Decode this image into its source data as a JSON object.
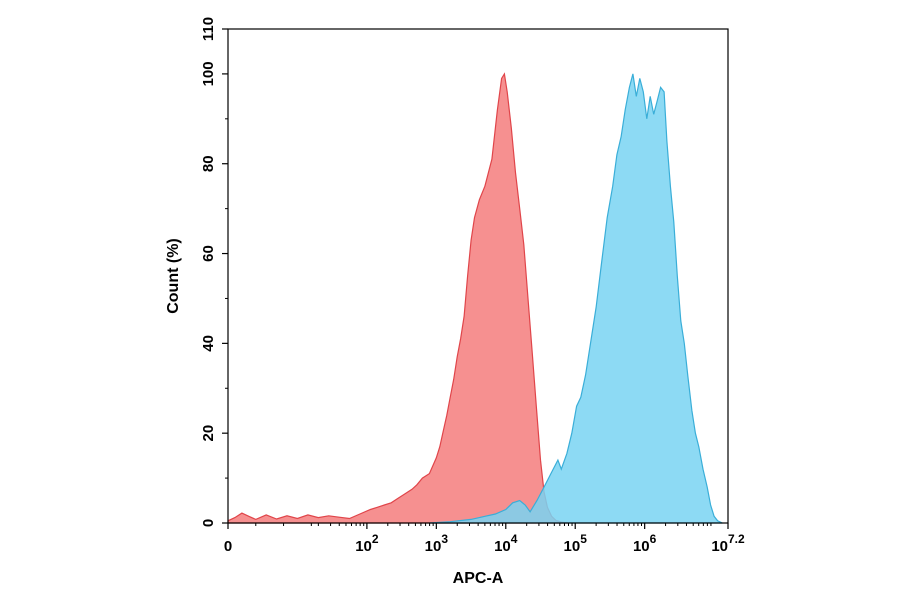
{
  "chart_data": {
    "type": "area",
    "title": "",
    "xlabel": "APC-A",
    "ylabel": "Count (%)",
    "x_scale": "biexponential",
    "xlim": [
      0,
      7.2
    ],
    "ylim": [
      0,
      110
    ],
    "grid": false,
    "legend": "none",
    "y_ticks": [
      0,
      20,
      40,
      60,
      80,
      100,
      110
    ],
    "y_tick_labels": [
      "0",
      "20",
      "40",
      "60",
      "80",
      "100",
      "110"
    ],
    "x_ticks": [
      {
        "pos": 0,
        "base": "0",
        "exp": ""
      },
      {
        "pos": 2,
        "base": "10",
        "exp": "2"
      },
      {
        "pos": 3,
        "base": "10",
        "exp": "3"
      },
      {
        "pos": 4,
        "base": "10",
        "exp": "4"
      },
      {
        "pos": 5,
        "base": "10",
        "exp": "5"
      },
      {
        "pos": 6,
        "base": "10",
        "exp": "6"
      },
      {
        "pos": 7.2,
        "base": "10",
        "exp": "7.2"
      }
    ],
    "series": [
      {
        "color": "#f47c7c",
        "stroke": "#e0454a",
        "points": [
          [
            0.0,
            0.5
          ],
          [
            0.1,
            1.2
          ],
          [
            0.2,
            2.2
          ],
          [
            0.3,
            1.5
          ],
          [
            0.4,
            0.8
          ],
          [
            0.55,
            1.8
          ],
          [
            0.7,
            0.9
          ],
          [
            0.85,
            1.6
          ],
          [
            1.0,
            1.0
          ],
          [
            1.15,
            1.8
          ],
          [
            1.3,
            1.2
          ],
          [
            1.45,
            1.6
          ],
          [
            1.6,
            1.3
          ],
          [
            1.75,
            1.0
          ],
          [
            1.9,
            2.0
          ],
          [
            2.05,
            3.0
          ],
          [
            2.15,
            3.5
          ],
          [
            2.25,
            4.0
          ],
          [
            2.35,
            4.5
          ],
          [
            2.45,
            5.5
          ],
          [
            2.55,
            6.5
          ],
          [
            2.65,
            7.5
          ],
          [
            2.72,
            8.5
          ],
          [
            2.8,
            10.0
          ],
          [
            2.9,
            11.0
          ],
          [
            3.0,
            14.5
          ],
          [
            3.05,
            17.0
          ],
          [
            3.1,
            20.5
          ],
          [
            3.15,
            24.0
          ],
          [
            3.2,
            28.0
          ],
          [
            3.25,
            32.0
          ],
          [
            3.3,
            37.0
          ],
          [
            3.35,
            41.0
          ],
          [
            3.4,
            46.0
          ],
          [
            3.45,
            55.0
          ],
          [
            3.5,
            63.0
          ],
          [
            3.55,
            68.0
          ],
          [
            3.62,
            72.0
          ],
          [
            3.7,
            75.0
          ],
          [
            3.8,
            81.0
          ],
          [
            3.88,
            92.0
          ],
          [
            3.94,
            99.0
          ],
          [
            3.98,
            100.0
          ],
          [
            4.02,
            96.0
          ],
          [
            4.08,
            88.0
          ],
          [
            4.14,
            78.0
          ],
          [
            4.2,
            70.0
          ],
          [
            4.26,
            62.0
          ],
          [
            4.32,
            50.0
          ],
          [
            4.38,
            38.0
          ],
          [
            4.44,
            26.0
          ],
          [
            4.5,
            14.0
          ],
          [
            4.55,
            7.0
          ],
          [
            4.6,
            3.5
          ],
          [
            4.66,
            1.5
          ],
          [
            4.72,
            0.6
          ],
          [
            4.8,
            0.2
          ],
          [
            4.9,
            0.0
          ]
        ]
      },
      {
        "color": "#79d4f2",
        "stroke": "#3aaed8",
        "points": [
          [
            2.9,
            0.0
          ],
          [
            3.2,
            0.3
          ],
          [
            3.5,
            0.8
          ],
          [
            3.7,
            1.5
          ],
          [
            3.85,
            2.0
          ],
          [
            4.0,
            3.0
          ],
          [
            4.1,
            4.5
          ],
          [
            4.2,
            5.0
          ],
          [
            4.28,
            4.0
          ],
          [
            4.35,
            2.5
          ],
          [
            4.45,
            5.0
          ],
          [
            4.55,
            8.0
          ],
          [
            4.65,
            11.0
          ],
          [
            4.75,
            14.0
          ],
          [
            4.8,
            12.0
          ],
          [
            4.88,
            15.5
          ],
          [
            4.95,
            20.0
          ],
          [
            5.02,
            26.0
          ],
          [
            5.08,
            28.0
          ],
          [
            5.15,
            33.0
          ],
          [
            5.22,
            40.0
          ],
          [
            5.3,
            48.0
          ],
          [
            5.38,
            58.0
          ],
          [
            5.46,
            68.0
          ],
          [
            5.54,
            75.0
          ],
          [
            5.6,
            82.0
          ],
          [
            5.66,
            86.0
          ],
          [
            5.72,
            92.0
          ],
          [
            5.78,
            97.0
          ],
          [
            5.83,
            100.0
          ],
          [
            5.88,
            95.0
          ],
          [
            5.93,
            99.0
          ],
          [
            5.98,
            96.0
          ],
          [
            6.03,
            90.0
          ],
          [
            6.08,
            95.0
          ],
          [
            6.13,
            91.0
          ],
          [
            6.18,
            94.0
          ],
          [
            6.23,
            97.0
          ],
          [
            6.28,
            96.0
          ],
          [
            6.32,
            85.0
          ],
          [
            6.37,
            75.0
          ],
          [
            6.42,
            67.0
          ],
          [
            6.47,
            55.0
          ],
          [
            6.52,
            45.0
          ],
          [
            6.57,
            40.0
          ],
          [
            6.62,
            33.0
          ],
          [
            6.68,
            25.0
          ],
          [
            6.73,
            20.0
          ],
          [
            6.78,
            17.0
          ],
          [
            6.84,
            12.0
          ],
          [
            6.9,
            8.0
          ],
          [
            6.95,
            4.0
          ],
          [
            7.0,
            1.5
          ],
          [
            7.05,
            0.5
          ],
          [
            7.12,
            0.0
          ]
        ]
      }
    ],
    "background": "#ffffff",
    "axis_color": "#000000"
  }
}
